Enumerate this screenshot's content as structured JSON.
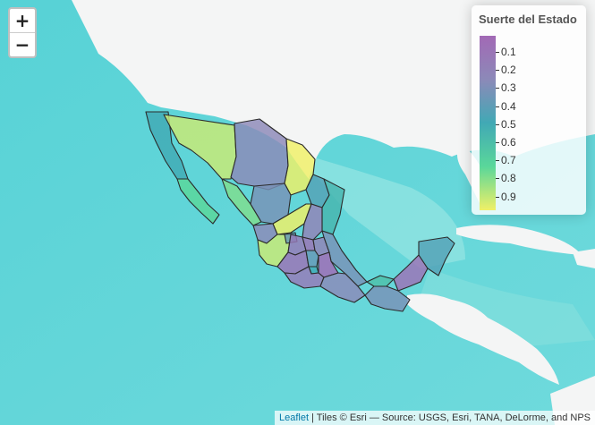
{
  "zoom": {
    "in_label": "+",
    "out_label": "−"
  },
  "legend": {
    "title": "Suerte del Estado",
    "ticks": [
      "0.1",
      "0.2",
      "0.3",
      "0.4",
      "0.5",
      "0.6",
      "0.7",
      "0.8",
      "0.9"
    ],
    "colors": {
      "low": "#a269b5",
      "mid": "#41a9b5",
      "high": "#f0f067"
    }
  },
  "attribution": {
    "link": "Leaflet",
    "text": " | Tiles © Esri — Source: USGS, Esri, TANA, DeLorme, and NPS"
  },
  "map": {
    "colors": {
      "ocean": "#5fd6d8",
      "land": "#f4f5f5",
      "border": "#2b2b2b"
    },
    "states_value": [
      0.5,
      0.7,
      0.85,
      0.75,
      0.3,
      0.9,
      0.35,
      0.45,
      0.55,
      0.9,
      0.25,
      0.3,
      0.85,
      0.4,
      0.2,
      0.15,
      0.25,
      0.35,
      0.15,
      0.4,
      0.5,
      0.1,
      0.2,
      0.3,
      0.6,
      0.35,
      0.15,
      0.45
    ]
  }
}
